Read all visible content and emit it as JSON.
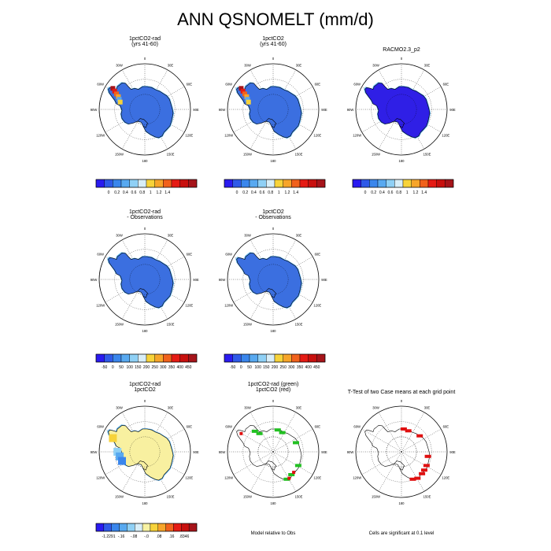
{
  "figure": {
    "title": "ANN QSNOMELT (mm/d)"
  },
  "map_labels": {
    "lon_labels": [
      "0",
      "30E",
      "60E",
      "90E",
      "120E",
      "150E",
      "180",
      "150W",
      "120W",
      "90W",
      "60W",
      "30W"
    ]
  },
  "colors": {
    "abs_scale": [
      "#2a1bf0",
      "#2f5ae8",
      "#3a86ec",
      "#58a9f0",
      "#8fd0f5",
      "#d8eef8",
      "#f7d33a",
      "#f7a52a",
      "#f1621c",
      "#e51b14",
      "#c8100e",
      "#a6141a"
    ],
    "diff_scale": [
      "#2a1bf0",
      "#2f5ae8",
      "#3a86ec",
      "#58a9f0",
      "#8fd0f5",
      "#d8eef8",
      "#f7f2a3",
      "#f7d33a",
      "#f7a52a",
      "#f1621c",
      "#e51b14",
      "#c8100e",
      "#a6141a"
    ],
    "model_fill": "#3b6fe0",
    "racmo_fill": "#2f1fe6",
    "caseDiff_fill": "#f8f0a0",
    "sig_red": "#e01010",
    "sig_green": "#22c022"
  },
  "panels": [
    {
      "id": "p1",
      "title_lines": [
        "1pctCO2-rad",
        "(yrs 41-60)"
      ],
      "fill": "model",
      "colorbar": "abs"
    },
    {
      "id": "p2",
      "title_lines": [
        "1pctCO2",
        "(yrs 41-60)"
      ],
      "fill": "model",
      "colorbar": "abs"
    },
    {
      "id": "p3",
      "title_lines": [
        "RACMO2.3_p2"
      ],
      "fill": "racmo",
      "colorbar": "abs"
    },
    {
      "id": "p4",
      "title_lines": [
        "1pctCO2-rad",
        "- Observations"
      ],
      "fill": "model",
      "colorbar": "obs"
    },
    {
      "id": "p5",
      "title_lines": [
        "1pctCO2",
        "- Observations"
      ],
      "fill": "model",
      "colorbar": "obs"
    },
    {
      "id": "p7",
      "title_lines": [
        "1pctCO2-rad",
        "1pctCO2"
      ],
      "fill": "caseDiff",
      "colorbar": "diff"
    },
    {
      "id": "p8",
      "title_lines": [
        "1pctCO2-rad (green)",
        "1pctCO2 (red)"
      ],
      "fill": "outline",
      "caption": "Model relative to Obs"
    },
    {
      "id": "p9",
      "title_lines": [
        "T-Test of two Case means at each grid point"
      ],
      "fill": "outline",
      "caption": "Cells are significant at 0.1 level"
    }
  ],
  "chart_data": [
    {
      "type": "heatmap",
      "title": "1pctCO2-rad (yrs 41-60)",
      "colorbar_labels": [
        "0",
        "0.2",
        "0.4",
        "0.6",
        "0.8",
        "1",
        "1.2",
        "1.4"
      ]
    },
    {
      "type": "heatmap",
      "title": "1pctCO2 (yrs 41-60)",
      "colorbar_labels": [
        "0",
        "0.2",
        "0.4",
        "0.6",
        "0.8",
        "1",
        "1.2",
        "1.4"
      ]
    },
    {
      "type": "heatmap",
      "title": "RACMO2.3_p2",
      "colorbar_labels": [
        "0",
        "0.2",
        "0.4",
        "0.6",
        "0.8",
        "1",
        "1.2",
        "1.4"
      ]
    },
    {
      "type": "heatmap",
      "title": "1pctCO2-rad - Observations",
      "colorbar_labels": [
        "-50",
        "0",
        "50",
        "100",
        "150",
        "200",
        "250",
        "300",
        "350",
        "400",
        "450"
      ]
    },
    {
      "type": "heatmap",
      "title": "1pctCO2 - Observations",
      "colorbar_labels": [
        "-50",
        "0",
        "50",
        "100",
        "150",
        "200",
        "250",
        "300",
        "350",
        "400",
        "450"
      ]
    },
    {
      "type": "heatmap",
      "title": "1pctCO2-rad 1pctCO2",
      "colorbar_labels": [
        "-1.2291",
        "-.16",
        "-.08",
        "-.0",
        ".08",
        ".16",
        ".8346"
      ]
    },
    {
      "type": "heatmap",
      "title": "1pctCO2-rad (green) 1pctCO2 (red)"
    },
    {
      "type": "heatmap",
      "title": "T-Test of two Case means at each grid point"
    }
  ]
}
